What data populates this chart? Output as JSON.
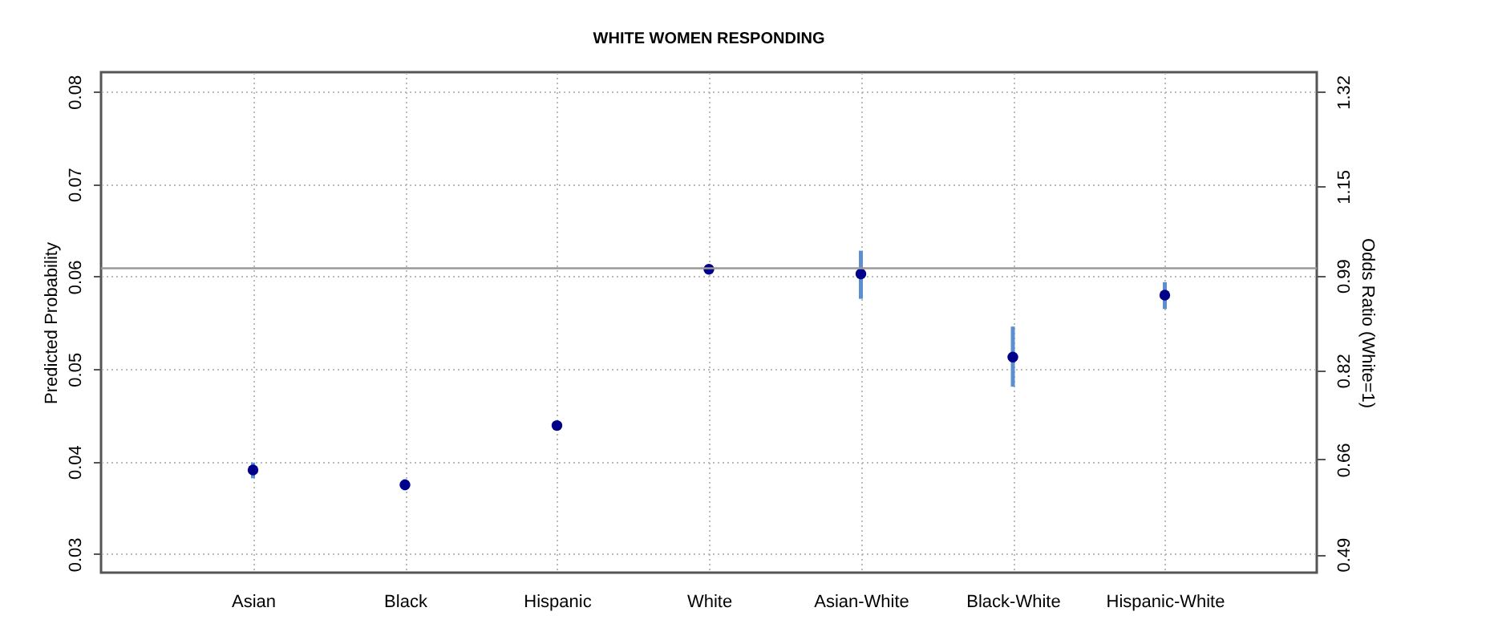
{
  "chart_data": {
    "type": "scatter",
    "title": "WHITE WOMEN RESPONDING",
    "categories": [
      "Asian",
      "Black",
      "Hispanic",
      "White",
      "Asian-White",
      "Black-White",
      "Hispanic-White"
    ],
    "series": [
      {
        "color": "#00008b",
        "values": [
          0.0391,
          0.0375,
          0.0439,
          0.0608,
          0.0603,
          0.0513,
          0.058
        ],
        "errors": [
          [
            0.0382,
            0.0399
          ],
          [
            0.0369,
            0.0381
          ],
          [
            0.0435,
            0.0443
          ],
          null,
          [
            0.0576,
            0.0628
          ],
          [
            0.0481,
            0.0546
          ],
          [
            0.0565,
            0.0594
          ]
        ]
      }
    ],
    "ylabel": "Predicted Probability",
    "y2label": "Odds Ratio (White=1)",
    "ylim": [
      0.028,
      0.0821
    ],
    "yticks": [
      0.03,
      0.04,
      0.05,
      0.06,
      0.07,
      0.08
    ],
    "y2lim": [
      0.457,
      1.355
    ],
    "y2ticks": [
      0.49,
      0.66,
      0.82,
      0.99,
      1.15,
      1.32
    ],
    "ref_lines": [
      {
        "axis": "y",
        "value": 0.0609,
        "color": "#999999"
      }
    ],
    "grid": true,
    "marker": "circle"
  }
}
